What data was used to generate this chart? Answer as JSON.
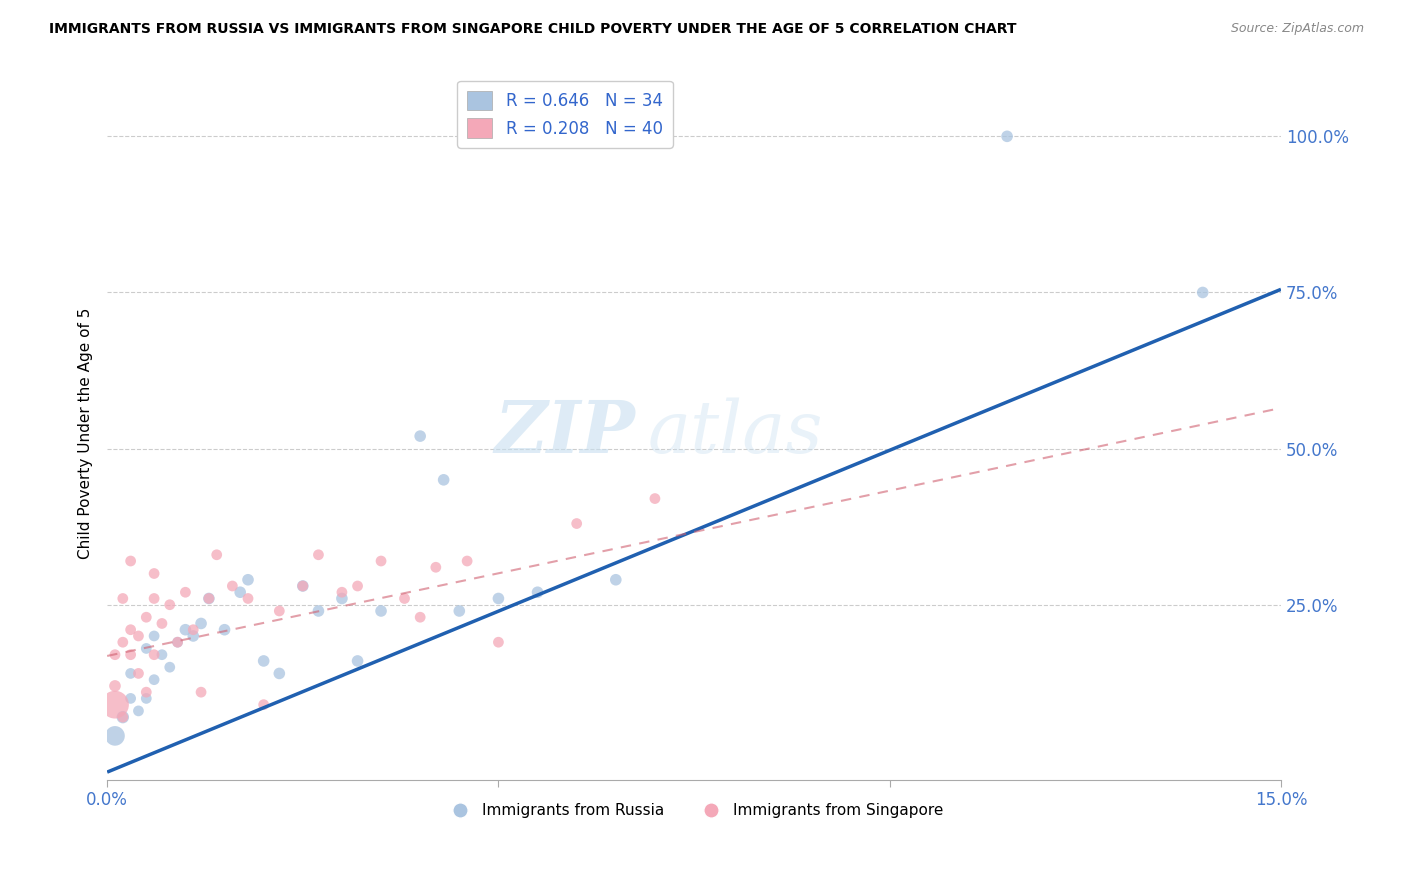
{
  "title": "IMMIGRANTS FROM RUSSIA VS IMMIGRANTS FROM SINGAPORE CHILD POVERTY UNDER THE AGE OF 5 CORRELATION CHART",
  "source": "Source: ZipAtlas.com",
  "ylabel": "Child Poverty Under the Age of 5",
  "xlim": [
    0.0,
    0.15
  ],
  "ylim": [
    -0.03,
    1.08
  ],
  "russia_R": 0.646,
  "russia_N": 34,
  "singapore_R": 0.208,
  "singapore_N": 40,
  "russia_color": "#aac4e0",
  "singapore_color": "#f4a8b8",
  "russia_line_color": "#2060b0",
  "singapore_line_color": "#d06070",
  "legend_label_russia": "Immigrants from Russia",
  "legend_label_singapore": "Immigrants from Singapore",
  "watermark_zip": "ZIP",
  "watermark_atlas": "atlas",
  "russia_x": [
    0.001,
    0.002,
    0.003,
    0.003,
    0.004,
    0.005,
    0.005,
    0.006,
    0.006,
    0.007,
    0.008,
    0.009,
    0.01,
    0.011,
    0.012,
    0.013,
    0.015,
    0.017,
    0.018,
    0.02,
    0.022,
    0.025,
    0.027,
    0.03,
    0.032,
    0.035,
    0.04,
    0.043,
    0.045,
    0.05,
    0.055,
    0.065,
    0.115,
    0.14
  ],
  "russia_y": [
    0.04,
    0.07,
    0.1,
    0.14,
    0.08,
    0.18,
    0.1,
    0.2,
    0.13,
    0.17,
    0.15,
    0.19,
    0.21,
    0.2,
    0.22,
    0.26,
    0.21,
    0.27,
    0.29,
    0.16,
    0.14,
    0.28,
    0.24,
    0.26,
    0.16,
    0.24,
    0.52,
    0.45,
    0.24,
    0.26,
    0.27,
    0.29,
    1.0,
    0.75
  ],
  "russia_size": [
    200,
    80,
    60,
    60,
    60,
    60,
    60,
    60,
    60,
    60,
    60,
    60,
    70,
    70,
    70,
    70,
    70,
    70,
    70,
    70,
    70,
    70,
    70,
    70,
    70,
    70,
    70,
    70,
    70,
    70,
    70,
    70,
    70,
    70
  ],
  "singapore_x": [
    0.001,
    0.001,
    0.001,
    0.002,
    0.002,
    0.002,
    0.003,
    0.003,
    0.003,
    0.004,
    0.004,
    0.005,
    0.005,
    0.006,
    0.006,
    0.006,
    0.007,
    0.008,
    0.009,
    0.01,
    0.011,
    0.012,
    0.013,
    0.014,
    0.016,
    0.018,
    0.02,
    0.022,
    0.025,
    0.027,
    0.03,
    0.032,
    0.035,
    0.038,
    0.04,
    0.042,
    0.046,
    0.05,
    0.06,
    0.07
  ],
  "singapore_y": [
    0.09,
    0.12,
    0.17,
    0.07,
    0.19,
    0.26,
    0.17,
    0.21,
    0.32,
    0.14,
    0.2,
    0.11,
    0.23,
    0.17,
    0.26,
    0.3,
    0.22,
    0.25,
    0.19,
    0.27,
    0.21,
    0.11,
    0.26,
    0.33,
    0.28,
    0.26,
    0.09,
    0.24,
    0.28,
    0.33,
    0.27,
    0.28,
    0.32,
    0.26,
    0.23,
    0.31,
    0.32,
    0.19,
    0.38,
    0.42
  ],
  "singapore_size": [
    400,
    70,
    60,
    60,
    60,
    60,
    60,
    60,
    60,
    60,
    60,
    60,
    60,
    60,
    60,
    60,
    60,
    60,
    60,
    60,
    60,
    60,
    60,
    60,
    60,
    60,
    60,
    60,
    60,
    60,
    60,
    60,
    60,
    60,
    60,
    60,
    60,
    60,
    60,
    60
  ],
  "russia_line_x0": 0.0,
  "russia_line_y0": -0.018,
  "russia_line_x1": 0.15,
  "russia_line_y1": 0.755,
  "singapore_line_x0": 0.0,
  "singapore_line_y0": 0.168,
  "singapore_line_x1": 0.15,
  "singapore_line_y1": 0.565
}
